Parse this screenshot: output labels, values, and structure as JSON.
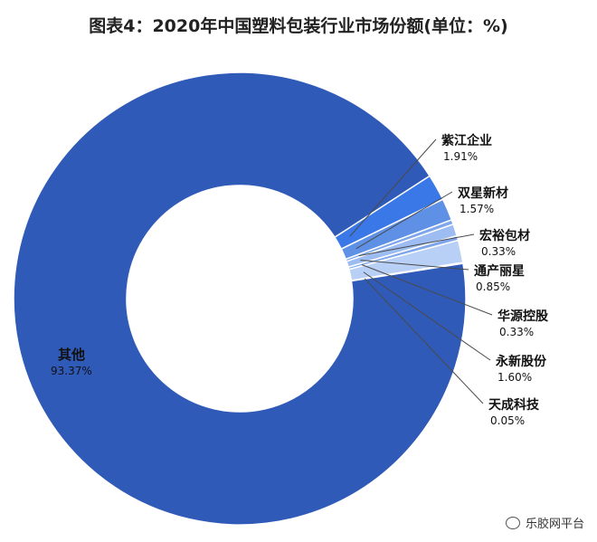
{
  "chart_data": {
    "type": "pie",
    "title": "图表4：2020年中国塑料包装行业市场份额(单位：%)",
    "categories": [
      "其他",
      "紫江企业",
      "双星新材",
      "宏裕包材",
      "通产丽星",
      "华源控股",
      "永新股份",
      "天成科技"
    ],
    "values": [
      93.37,
      1.91,
      1.57,
      0.33,
      0.85,
      0.33,
      1.6,
      0.05
    ],
    "value_labels": [
      "93.37%",
      "1.91%",
      "1.57%",
      "0.33%",
      "0.85%",
      "0.33%",
      "1.60%",
      "0.05%"
    ],
    "colors": [
      "#2f5ab8",
      "#3b78e7",
      "#5e90e6",
      "#7fa6ec",
      "#9dbcf2",
      "#7fa6ec",
      "#b9d0f6",
      "#cfe0fa"
    ],
    "donut": true,
    "legend": "none"
  },
  "watermark": {
    "text": "乐胶网平台",
    "icon": "wechat-icon"
  }
}
